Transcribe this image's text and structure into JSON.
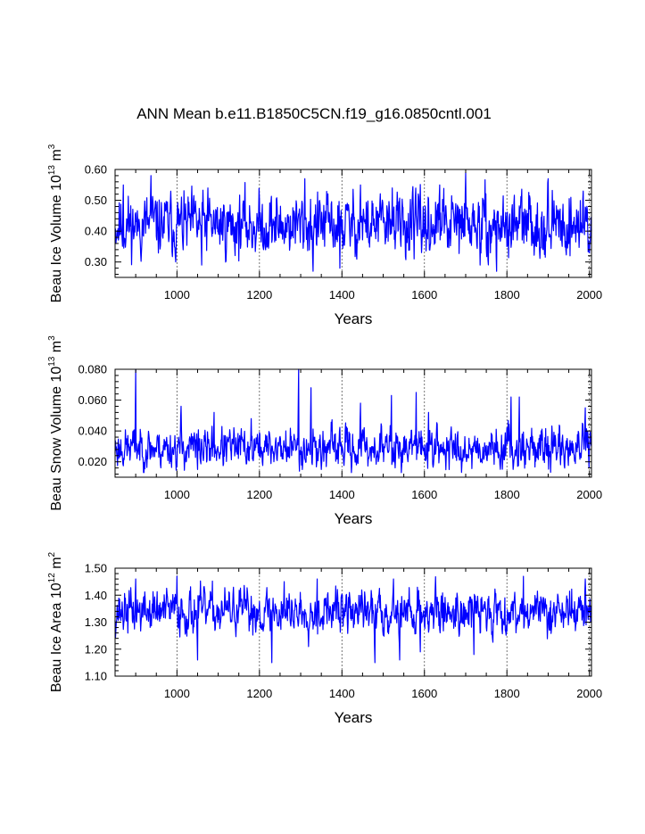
{
  "title": "ANN Mean b.e11.B1850C5CN.f19_g16.0850cntl.001",
  "chart_data": [
    {
      "type": "line",
      "name": "beau-ice-volume",
      "ylabel_main": "Beau Ice Volume 10",
      "ylabel_exp": "13",
      "ylabel_unit": " m",
      "ylabel_unit_exp": "3",
      "xlabel": "Years",
      "xlim": [
        850,
        2005
      ],
      "ylim": [
        0.25,
        0.6
      ],
      "xticks": [
        1000,
        1200,
        1400,
        1600,
        1800,
        2000
      ],
      "yticks": [
        0.3,
        0.4,
        0.5,
        0.6
      ],
      "ytick_labels": [
        "0.30",
        "0.40",
        "0.50",
        "0.60"
      ],
      "xtick_labels": [
        "1000",
        "1200",
        "1400",
        "1600",
        "1800",
        "2000"
      ],
      "line_color": "#0000ff",
      "series": {
        "name": "Beau Ice Volume",
        "start_year": 850,
        "end_year": 2005,
        "mean": 0.42,
        "amplitude": 0.055,
        "min": 0.27,
        "max": 0.59,
        "seed": 11,
        "anchors": [
          [
            850,
            0.4
          ],
          [
            870,
            0.55
          ],
          [
            905,
            0.44
          ],
          [
            937,
            0.58
          ],
          [
            1000,
            0.42
          ],
          [
            1060,
            0.29
          ],
          [
            1075,
            0.54
          ],
          [
            1240,
            0.37
          ],
          [
            1310,
            0.57
          ],
          [
            1330,
            0.27
          ],
          [
            1395,
            0.28
          ],
          [
            1445,
            0.55
          ],
          [
            1522,
            0.54
          ],
          [
            1575,
            0.31
          ],
          [
            1637,
            0.55
          ],
          [
            1700,
            0.59
          ],
          [
            1735,
            0.29
          ],
          [
            1760,
            0.33
          ],
          [
            1775,
            0.27
          ],
          [
            1800,
            0.35
          ],
          [
            1900,
            0.57
          ],
          [
            1985,
            0.53
          ],
          [
            2005,
            0.4
          ]
        ]
      }
    },
    {
      "type": "line",
      "name": "beau-snow-volume",
      "ylabel_main": "Beau Snow Volume 10",
      "ylabel_exp": "13",
      "ylabel_unit": " m",
      "ylabel_unit_exp": "3",
      "xlabel": "Years",
      "xlim": [
        850,
        2005
      ],
      "ylim": [
        0.01,
        0.08
      ],
      "xticks": [
        1000,
        1200,
        1400,
        1600,
        1800,
        2000
      ],
      "yticks": [
        0.02,
        0.04,
        0.06,
        0.08
      ],
      "ytick_labels": [
        "0.020",
        "0.040",
        "0.060",
        "0.080"
      ],
      "xtick_labels": [
        "1000",
        "1200",
        "1400",
        "1600",
        "1800",
        "2000"
      ],
      "line_color": "#0000ff",
      "series": {
        "name": "Beau Snow Volume",
        "start_year": 850,
        "end_year": 2005,
        "mean": 0.029,
        "amplitude": 0.007,
        "min": 0.013,
        "max": 0.08,
        "seed": 23,
        "anchors": [
          [
            900,
            0.08
          ],
          [
            1010,
            0.056
          ],
          [
            1050,
            0.015
          ],
          [
            1090,
            0.052
          ],
          [
            1180,
            0.048
          ],
          [
            1295,
            0.08
          ],
          [
            1325,
            0.068
          ],
          [
            1350,
            0.015
          ],
          [
            1435,
            0.018
          ],
          [
            1445,
            0.058
          ],
          [
            1520,
            0.063
          ],
          [
            1580,
            0.065
          ],
          [
            1610,
            0.052
          ],
          [
            1660,
            0.015
          ],
          [
            1800,
            0.042
          ],
          [
            1810,
            0.062
          ],
          [
            1830,
            0.062
          ],
          [
            1990,
            0.055
          ],
          [
            2005,
            0.03
          ]
        ]
      }
    },
    {
      "type": "line",
      "name": "beau-ice-area",
      "ylabel_main": "Beau Ice Area 10",
      "ylabel_exp": "12",
      "ylabel_unit": " m",
      "ylabel_unit_exp": "2",
      "xlabel": "Years",
      "xlim": [
        850,
        2005
      ],
      "ylim": [
        1.1,
        1.5
      ],
      "xticks": [
        1000,
        1200,
        1400,
        1600,
        1800,
        2000
      ],
      "yticks": [
        1.1,
        1.2,
        1.3,
        1.4,
        1.5
      ],
      "ytick_labels": [
        "1.10",
        "1.20",
        "1.30",
        "1.40",
        "1.50"
      ],
      "xtick_labels": [
        "1000",
        "1200",
        "1400",
        "1600",
        "1800",
        "2000"
      ],
      "line_color": "#0000ff",
      "series": {
        "name": "Beau Ice Area",
        "start_year": 850,
        "end_year": 2005,
        "mean": 1.34,
        "amplitude": 0.045,
        "min": 1.15,
        "max": 1.47,
        "seed": 37,
        "anchors": [
          [
            900,
            1.46
          ],
          [
            1000,
            1.47
          ],
          [
            1050,
            1.16
          ],
          [
            1230,
            1.15
          ],
          [
            1260,
            1.45
          ],
          [
            1340,
            1.46
          ],
          [
            1480,
            1.15
          ],
          [
            1525,
            1.46
          ],
          [
            1540,
            1.16
          ],
          [
            1590,
            1.19
          ],
          [
            1720,
            1.18
          ],
          [
            1840,
            1.47
          ],
          [
            1990,
            1.46
          ],
          [
            2005,
            1.33
          ]
        ]
      }
    }
  ]
}
